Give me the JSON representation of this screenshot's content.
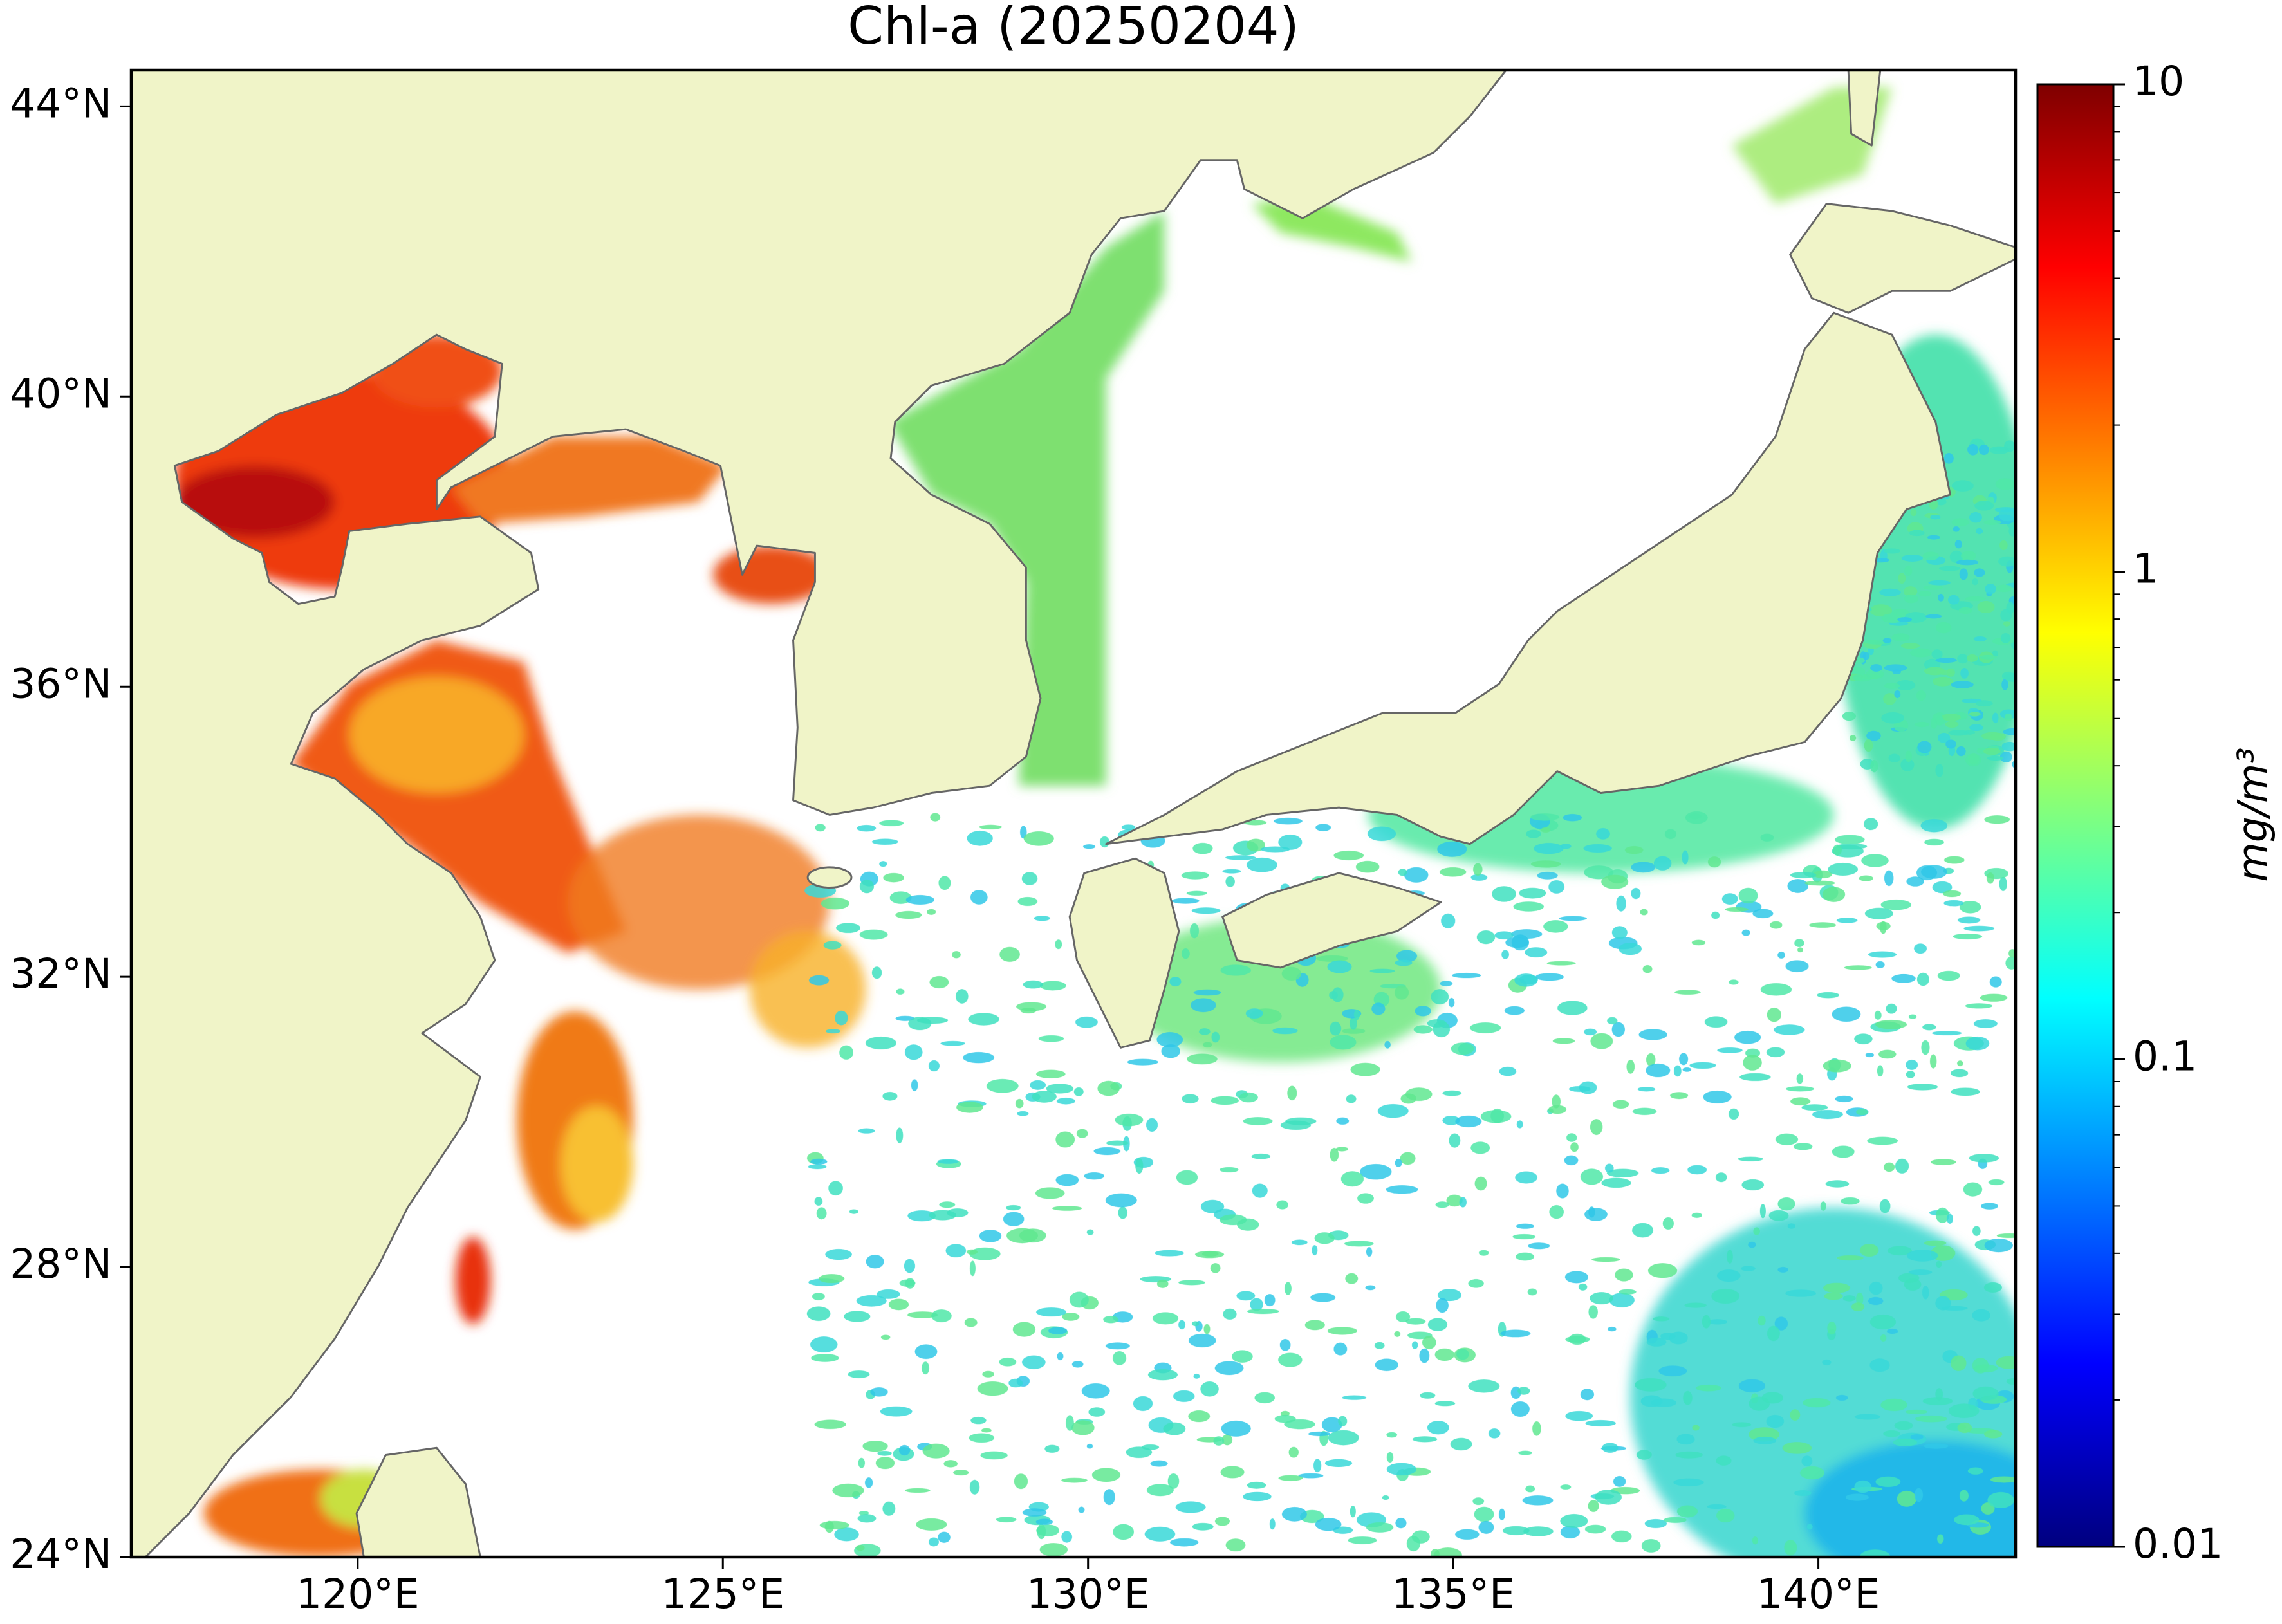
{
  "chart_data": {
    "type": "map",
    "title": "Chl-a (20250204)",
    "xlim": [
      116.9,
      142.7
    ],
    "ylim": [
      24,
      44.5
    ],
    "xticks": [
      {
        "value": 120,
        "label": "120°E"
      },
      {
        "value": 125,
        "label": "125°E"
      },
      {
        "value": 130,
        "label": "130°E"
      },
      {
        "value": 135,
        "label": "135°E"
      },
      {
        "value": 140,
        "label": "140°E"
      }
    ],
    "yticks": [
      {
        "value": 24,
        "label": "24°N"
      },
      {
        "value": 28,
        "label": "28°N"
      },
      {
        "value": 32,
        "label": "32°N"
      },
      {
        "value": 36,
        "label": "36°N"
      },
      {
        "value": 40,
        "label": "40°N"
      },
      {
        "value": 44,
        "label": "44°N"
      }
    ],
    "land_color": "#f0f4c8",
    "coastline_color": "#666666",
    "colorbar": {
      "label": "mg/m³",
      "scale": "log",
      "colormap": "jet",
      "lim": [
        0.01,
        10
      ],
      "ticks": [
        0.01,
        0.1,
        1,
        10
      ],
      "minor_ticks": [
        0.02,
        0.03,
        0.04,
        0.05,
        0.06,
        0.07,
        0.08,
        0.09,
        0.2,
        0.3,
        0.4,
        0.5,
        0.6,
        0.7,
        0.8,
        0.9,
        2,
        3,
        4,
        5,
        6,
        7,
        8,
        9
      ]
    }
  }
}
